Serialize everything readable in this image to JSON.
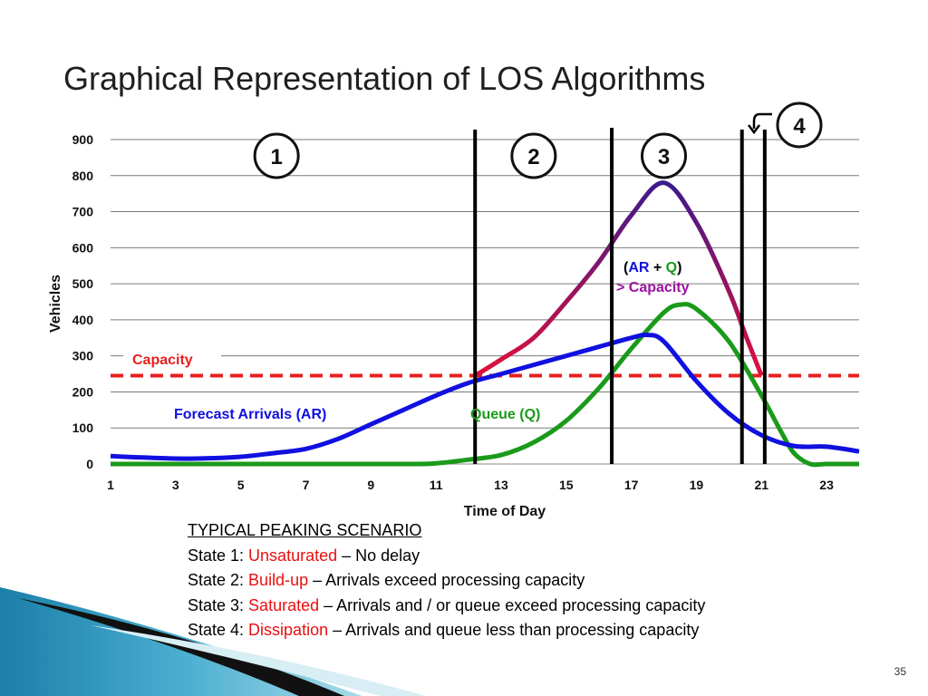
{
  "slide": {
    "title": "Graphical Representation of LOS Algorithms",
    "number": "35"
  },
  "caption": {
    "heading": "TYPICAL PEAKING SCENARIO",
    "states": [
      {
        "prefix": "State 1: ",
        "name": "Unsaturated",
        "desc": " – No delay"
      },
      {
        "prefix": "State 2: ",
        "name": "Build-up",
        "desc": " – Arrivals exceed processing capacity"
      },
      {
        "prefix": "State 3: ",
        "name": "Saturated",
        "desc": " – Arrivals and / or queue exceed processing capacity"
      },
      {
        "prefix": "State 4: ",
        "name": "Dissipation",
        "desc": " – Arrivals and queue less than processing capacity"
      }
    ]
  },
  "colors": {
    "arrivals": "#1010e0",
    "queue": "#1a9a1a",
    "capacity": "#e81e1e",
    "combined_start": "#e0103c",
    "combined_end": "#3c1a8c",
    "combined_label": "#a010a0",
    "divider": "#000000"
  },
  "chart_data": {
    "type": "line",
    "title": "",
    "xlabel": "Time of Day",
    "ylabel": "Vehicles",
    "xlim": [
      1,
      24
    ],
    "ylim": [
      0,
      900
    ],
    "xticks": [
      1,
      3,
      5,
      7,
      9,
      11,
      13,
      15,
      17,
      19,
      21,
      23
    ],
    "yticks": [
      0,
      100,
      200,
      300,
      400,
      500,
      600,
      700,
      800,
      900
    ],
    "grid": "horizontal",
    "capacity": {
      "label": "Capacity",
      "value": 245
    },
    "series": [
      {
        "name": "Forecast Arrivals (AR)",
        "key": "arrivals",
        "x": [
          1,
          2,
          3,
          4,
          5,
          6,
          7,
          8,
          9,
          10,
          11,
          12,
          13,
          14,
          15,
          16,
          17,
          17.5,
          18,
          19,
          20,
          21,
          22,
          23,
          24
        ],
        "y": [
          22,
          18,
          15,
          16,
          20,
          30,
          42,
          70,
          110,
          150,
          190,
          225,
          250,
          275,
          300,
          325,
          350,
          358,
          340,
          230,
          140,
          80,
          50,
          48,
          35
        ]
      },
      {
        "name": "Queue (Q)",
        "key": "queue",
        "x": [
          1,
          5,
          10,
          11,
          12,
          13,
          14,
          15,
          16,
          17,
          18,
          18.5,
          19,
          20,
          21,
          21.6,
          22,
          22.5,
          23,
          24
        ],
        "y": [
          0,
          0,
          0,
          2,
          12,
          25,
          60,
          120,
          210,
          320,
          420,
          442,
          430,
          340,
          190,
          90,
          30,
          0,
          0,
          0
        ]
      },
      {
        "name": "(AR + Q) > Capacity",
        "key": "combined",
        "x": [
          12.2,
          13,
          14,
          15,
          16,
          17,
          18,
          19,
          20,
          20.5,
          21
        ],
        "y": [
          245,
          290,
          350,
          450,
          560,
          690,
          780,
          670,
          480,
          360,
          245
        ]
      }
    ],
    "annotations": {
      "arrivals_label": "Forecast Arrivals  (AR)",
      "queue_label": "Queue (Q)",
      "combined_open": "(",
      "combined_ar": "AR",
      "combined_plus": " + ",
      "combined_q": "Q",
      "combined_close": ")",
      "combined_line2": "> Capacity"
    },
    "state_dividers": [
      12.2,
      16.4,
      20.4,
      21.1
    ],
    "state_markers": [
      {
        "label": "1",
        "x": 6.1
      },
      {
        "label": "2",
        "x": 14.0
      },
      {
        "label": "3",
        "x": 18.0
      },
      {
        "label": "4"
      }
    ]
  }
}
